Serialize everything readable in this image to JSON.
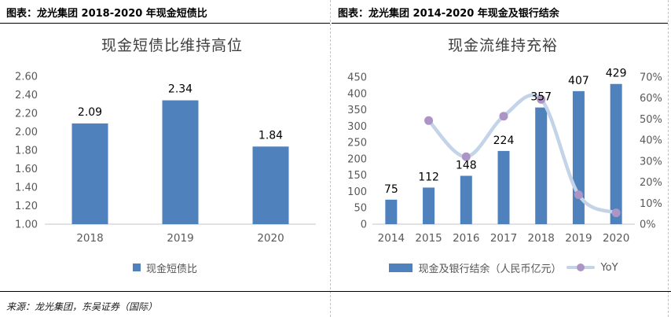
{
  "headers": {
    "left": "图表：龙光集团 2018-2020 年现金短债比",
    "right": "图表：龙光集团 2014-2020 年现金及银行结余"
  },
  "source_note": "来源：龙光集团，东吴证券（国际）",
  "colors": {
    "bar": "#4f81bd",
    "line": "#c3d3e8",
    "marker": "#ac95c5",
    "axis_line": "#d9d9d9",
    "tick_text": "#595959",
    "data_label_text": "#000000",
    "title_text": "#3f3f3f",
    "legend_text": "#555555"
  },
  "chart_data": [
    {
      "type": "bar",
      "title": "现金短债比维持高位",
      "categories": [
        "2018",
        "2019",
        "2020"
      ],
      "values": [
        2.09,
        2.34,
        1.84
      ],
      "data_labels": [
        "2.09",
        "2.34",
        "1.84"
      ],
      "xlabel": "",
      "ylabel": "",
      "ylim": [
        1.0,
        2.6
      ],
      "ytick_step": 0.2,
      "ytick_labels": [
        "1.00",
        "1.20",
        "1.40",
        "1.60",
        "1.80",
        "2.00",
        "2.20",
        "2.40",
        "2.60"
      ],
      "grid": false,
      "legend_position": "bottom",
      "legend": [
        {
          "label": "现金短债比",
          "swatch": "bar"
        }
      ]
    },
    {
      "type": "bar+line",
      "title": "现金流维持充裕",
      "categories": [
        "2014",
        "2015",
        "2016",
        "2017",
        "2018",
        "2019",
        "2020"
      ],
      "series": [
        {
          "name": "现金及银行结余（人民币亿元）",
          "type": "bar",
          "axis": "left",
          "values": [
            75,
            112,
            148,
            224,
            357,
            407,
            429
          ],
          "data_labels": [
            "75",
            "112",
            "148",
            "224",
            "357",
            "407",
            "429"
          ]
        },
        {
          "name": "YoY",
          "type": "line",
          "axis": "right",
          "values_pct": [
            null,
            49.3,
            32.1,
            51.4,
            59.4,
            14.0,
            5.4
          ]
        }
      ],
      "left_axis": {
        "range": [
          0,
          450
        ],
        "tick_step": 50,
        "tick_labels": [
          "0",
          "50",
          "100",
          "150",
          "200",
          "250",
          "300",
          "350",
          "400",
          "450"
        ]
      },
      "right_axis": {
        "range_pct": [
          0,
          70
        ],
        "tick_step_pct": 10,
        "tick_labels": [
          "0%",
          "10%",
          "20%",
          "30%",
          "40%",
          "50%",
          "60%",
          "70%"
        ]
      },
      "grid": false,
      "legend_position": "bottom"
    }
  ]
}
